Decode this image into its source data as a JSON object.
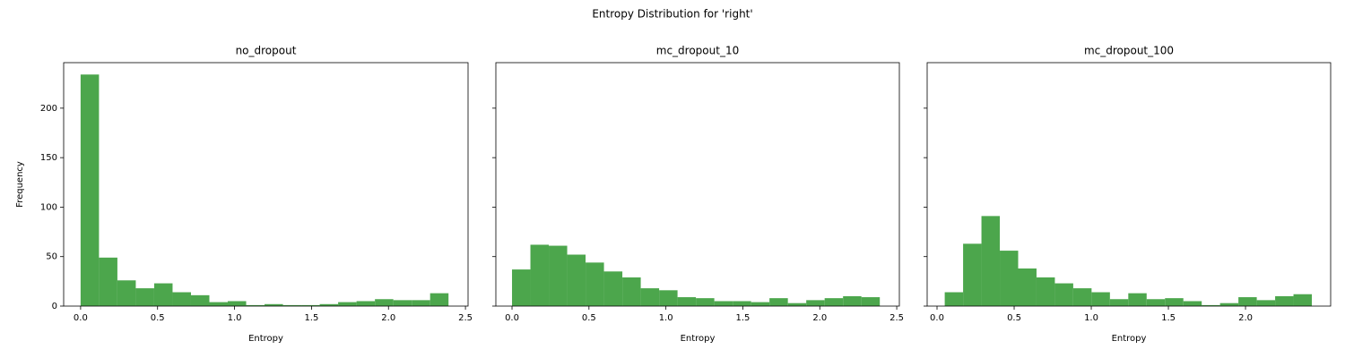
{
  "title": "Entropy Distribution for 'right'",
  "chart_data": [
    {
      "type": "histogram",
      "title": "no_dropout",
      "xlabel": "Entropy",
      "ylabel": "Frequency",
      "color": "#4ca64c",
      "bins": [
        0,
        0.1195,
        0.239,
        0.3585,
        0.478,
        0.5975,
        0.717,
        0.8365,
        0.956,
        1.0755,
        1.195,
        1.3145,
        1.434,
        1.5535,
        1.673,
        1.7925,
        1.912,
        2.0315,
        2.151,
        2.2705,
        2.39
      ],
      "values": [
        234,
        49,
        26,
        18,
        23,
        14,
        11,
        4,
        5,
        1,
        2,
        1,
        1,
        2,
        4,
        5,
        7,
        6,
        6,
        13
      ],
      "xlim": [
        -0.11,
        2.517
      ],
      "ylim": [
        0,
        246
      ],
      "xticks": [
        {
          "value": 0,
          "label": "0.0"
        },
        0.5,
        {
          "value": 1,
          "label": "1.0"
        },
        1.5,
        {
          "value": 2,
          "label": "2.0"
        },
        2.5
      ],
      "yticks": [
        0,
        50,
        100,
        150,
        200
      ]
    },
    {
      "type": "histogram",
      "title": "mc_dropout_10",
      "xlabel": "Entropy",
      "color": "#4ca64c",
      "bins": [
        0,
        0.1195,
        0.239,
        0.3585,
        0.478,
        0.5975,
        0.717,
        0.8365,
        0.956,
        1.0755,
        1.195,
        1.3145,
        1.434,
        1.5535,
        1.673,
        1.7925,
        1.912,
        2.0315,
        2.151,
        2.2705,
        2.39
      ],
      "values": [
        37,
        62,
        61,
        52,
        44,
        35,
        29,
        18,
        16,
        9,
        8,
        5,
        5,
        4,
        8,
        3,
        6,
        8,
        10,
        9
      ],
      "xlim": [
        -0.105,
        2.517
      ],
      "ylim": [
        0,
        246
      ],
      "xticks": [
        {
          "value": 0,
          "label": "0.0"
        },
        0.5,
        {
          "value": 1,
          "label": "1.0"
        },
        1.5,
        {
          "value": 2,
          "label": "2.0"
        },
        2.5
      ],
      "yticks": [
        0,
        50,
        100,
        150,
        200
      ]
    },
    {
      "type": "histogram",
      "title": "mc_dropout_100",
      "xlabel": "Entropy",
      "color": "#4ca64c",
      "bins": [
        0.05,
        0.169,
        0.288,
        0.407,
        0.526,
        0.645,
        0.764,
        0.883,
        1.002,
        1.121,
        1.24,
        1.359,
        1.478,
        1.597,
        1.716,
        1.835,
        1.954,
        2.073,
        2.192,
        2.311,
        2.43
      ],
      "values": [
        14,
        63,
        91,
        56,
        38,
        29,
        23,
        18,
        14,
        7,
        13,
        7,
        8,
        5,
        1,
        3,
        9,
        6,
        10,
        12
      ],
      "xlim": [
        -0.064,
        2.552
      ],
      "ylim": [
        0,
        246
      ],
      "xticks": [
        {
          "value": 0,
          "label": "0.0"
        },
        0.5,
        {
          "value": 1,
          "label": "1.0"
        },
        1.5,
        {
          "value": 2,
          "label": "2.0"
        }
      ],
      "yticks": [
        0,
        50,
        100,
        150,
        200
      ]
    }
  ]
}
